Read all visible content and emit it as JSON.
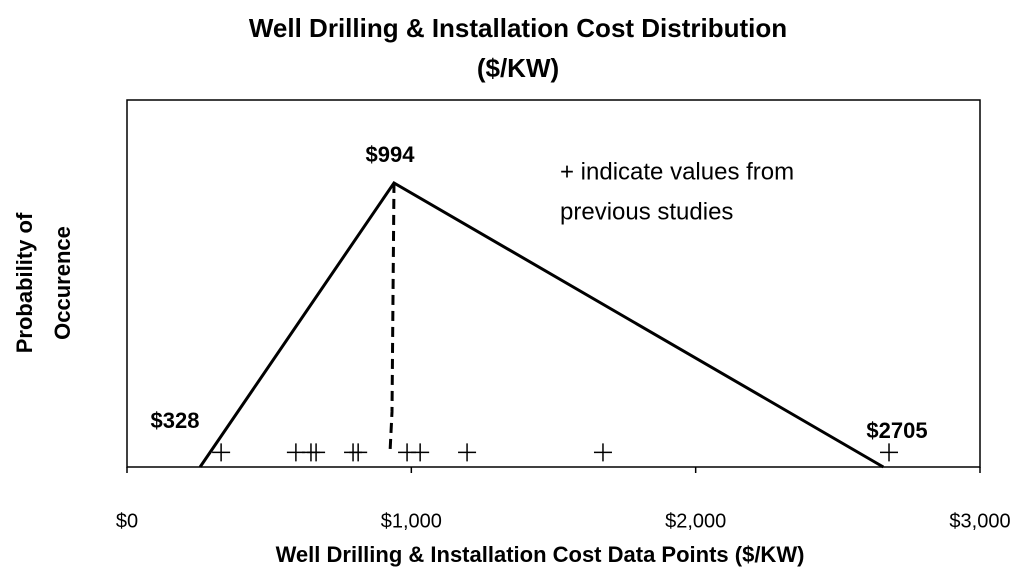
{
  "chart_data": {
    "type": "line",
    "title": [
      "Well Drilling & Installation Cost Distribution",
      "($/KW)"
    ],
    "x_label": "Well Drilling & Installation Cost Data Points ($/KW)",
    "y_label": [
      "Probability of",
      "Occurence"
    ],
    "xlim": [
      0,
      3000
    ],
    "xticks": [
      {
        "value": 0,
        "label": "$0"
      },
      {
        "value": 1000,
        "label": "$1,000"
      },
      {
        "value": 2000,
        "label": "$2,000"
      },
      {
        "value": 3000,
        "label": "$3,000"
      }
    ],
    "ylim": [
      0,
      1
    ],
    "annotations": [
      "$328",
      "$994",
      "$2705",
      "+ indicate values from",
      "previous studies"
    ],
    "series": [
      {
        "style": "solid",
        "color": "#000000",
        "x": [
          257,
          939,
          2660
        ],
        "values": [
          0,
          0.774,
          0
        ]
      },
      {
        "style": "dashed",
        "color": "#000000",
        "x": [
          939,
          932,
          925
        ],
        "values": [
          0.774,
          0.15,
          0.04
        ]
      },
      {
        "style": "markers",
        "color": "#000000",
        "x": [
          331,
          594,
          647,
          665,
          795,
          813,
          985,
          1031,
          1196,
          1674,
          2680
        ],
        "values": [
          0.04,
          0.04,
          0.04,
          0.04,
          0.04,
          0.04,
          0.04,
          0.04,
          0.04,
          0.04,
          0.04
        ]
      }
    ]
  }
}
